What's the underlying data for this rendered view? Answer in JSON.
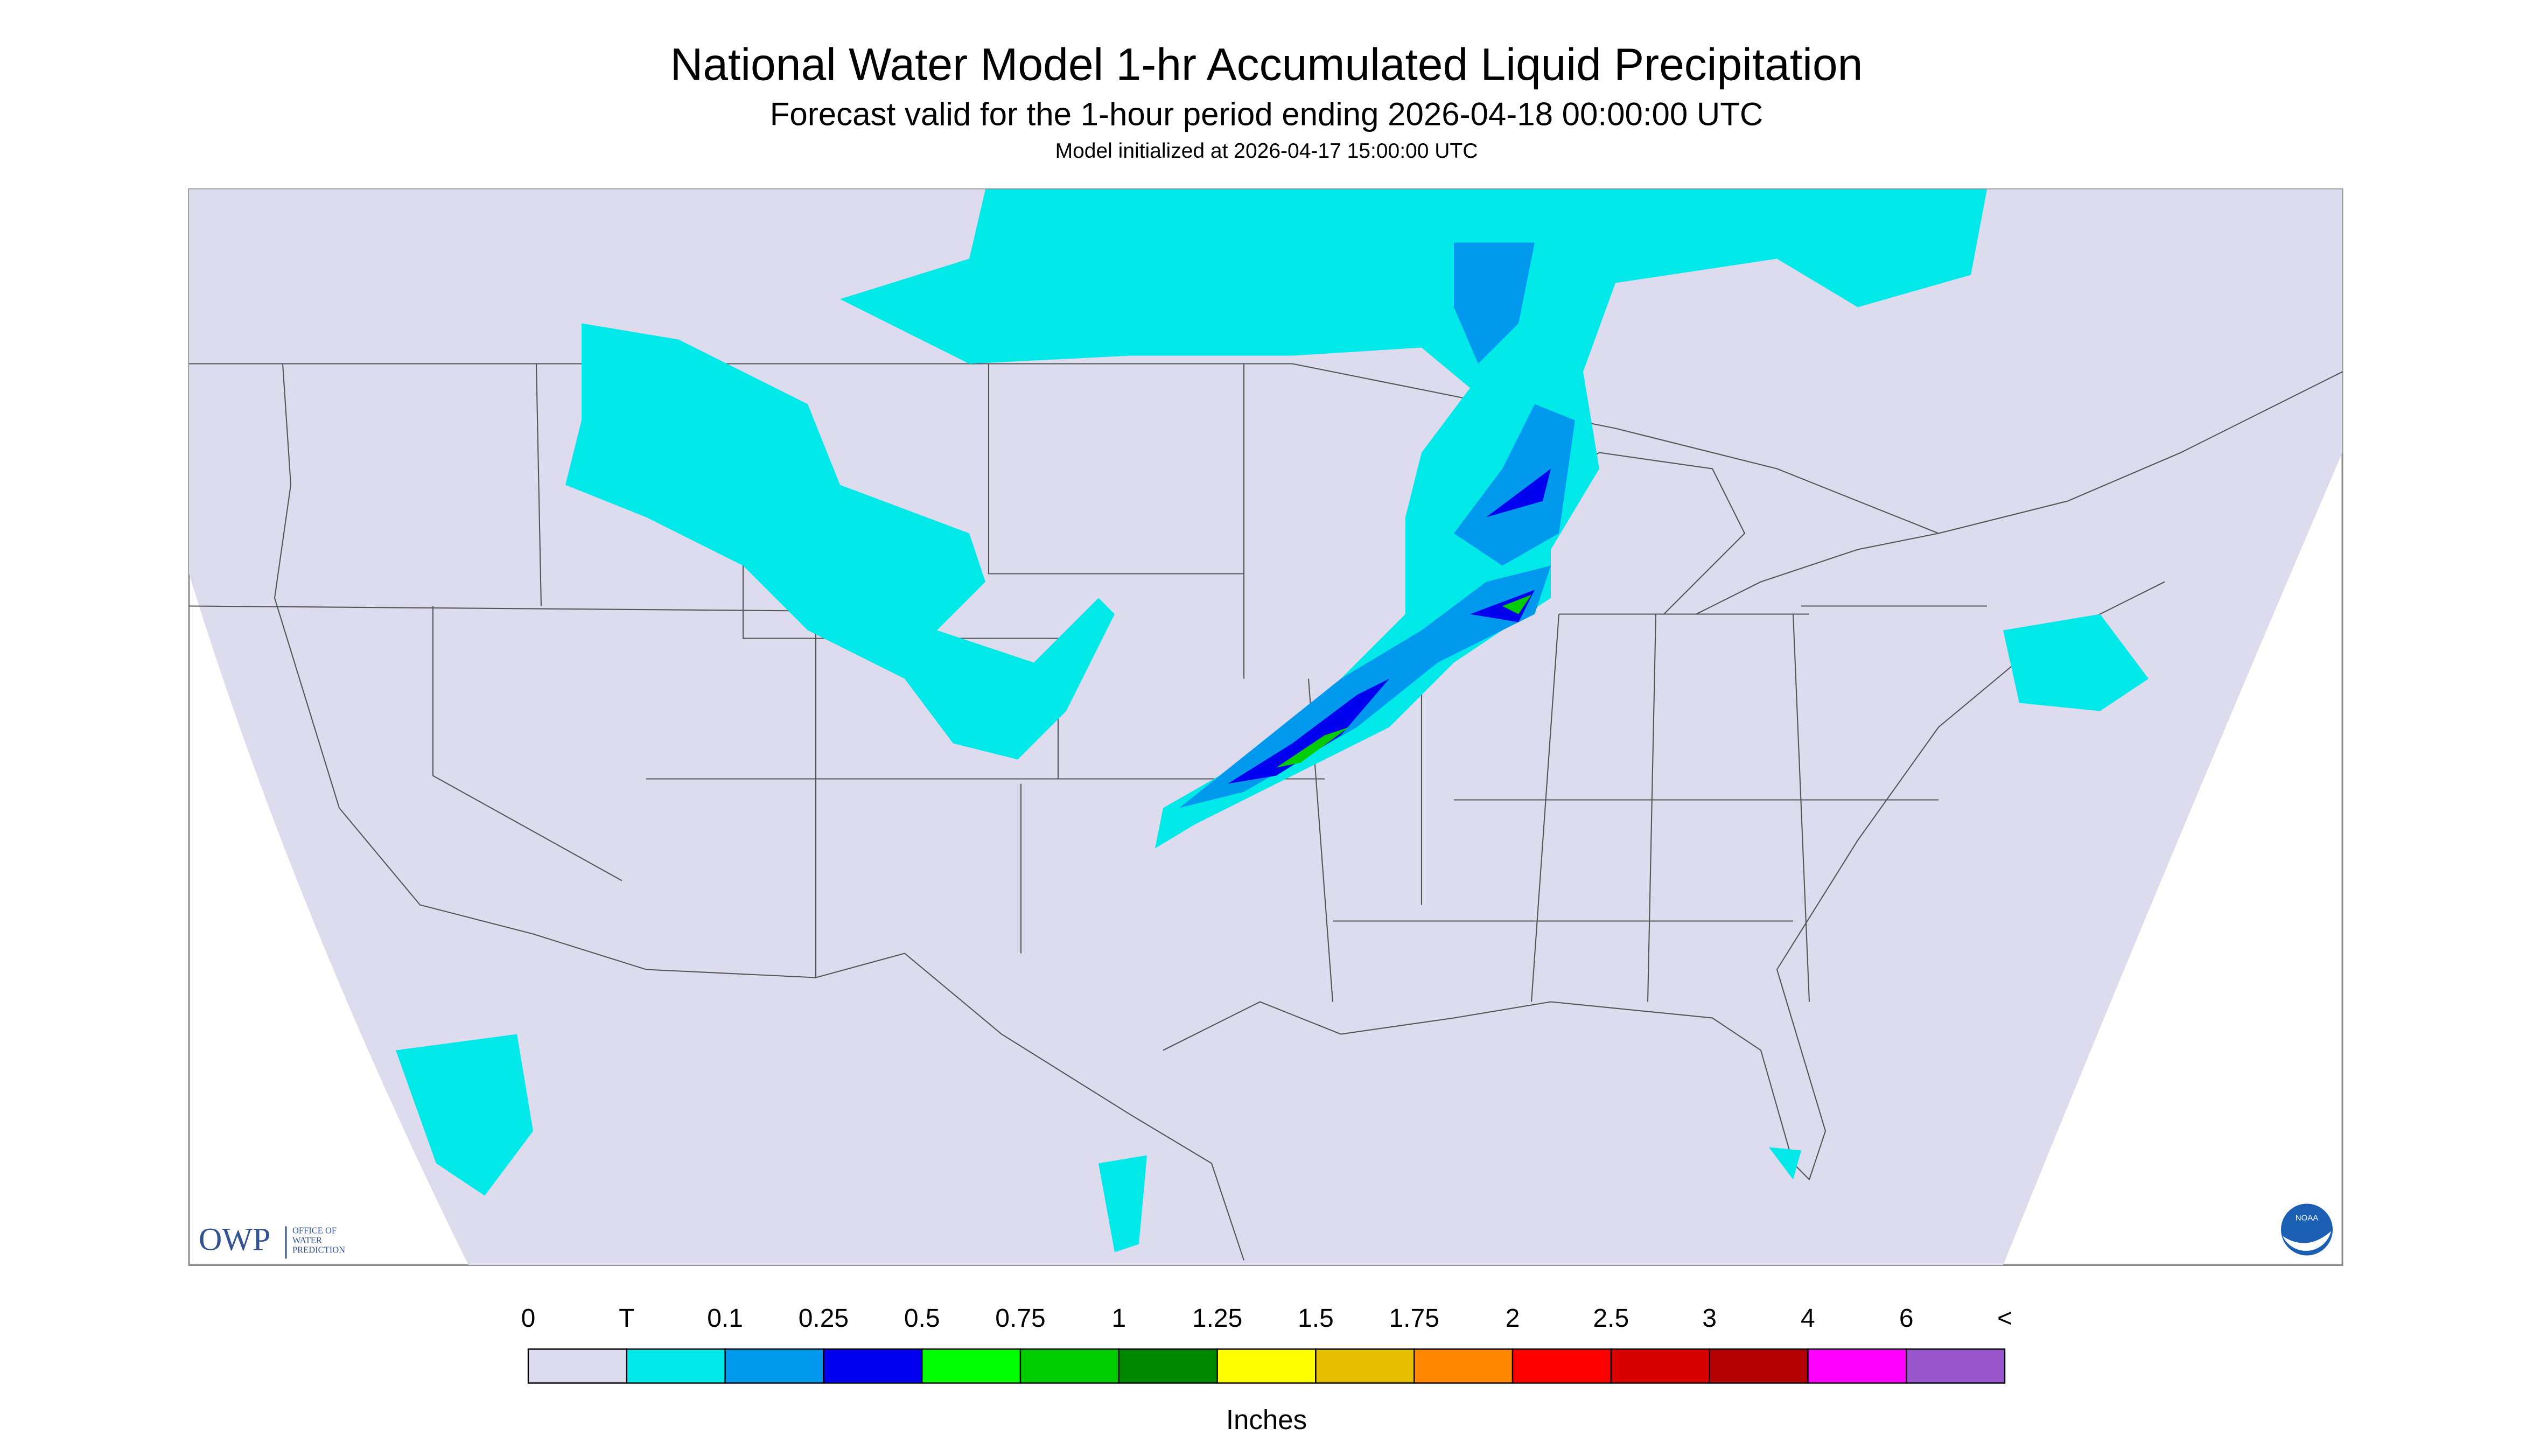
{
  "header": {
    "title": "National Water Model 1-hr Accumulated Liquid Precipitation",
    "subtitle": "Forecast valid for the 1-hour period ending 2026-04-18 00:00:00 UTC",
    "note": "Model initialized at 2026-04-17 15:00:00 UTC"
  },
  "legend": {
    "labels": [
      "0",
      "T",
      "0.1",
      "0.25",
      "0.5",
      "0.75",
      "1",
      "1.25",
      "1.5",
      "1.75",
      "2",
      "2.5",
      "3",
      "4",
      "6",
      "<"
    ],
    "colors": [
      "#dcdcee",
      "#00e8e8",
      "#0099ee",
      "#0000ee",
      "#00ff00",
      "#00cc00",
      "#008800",
      "#ffff00",
      "#e6bf00",
      "#ff8800",
      "#ff0000",
      "#d90000",
      "#b30000",
      "#ff00ff",
      "#9955cc"
    ],
    "unit": "Inches"
  },
  "logo": {
    "owp": "OWP",
    "lines": [
      "OFFICE OF",
      "WATER",
      "PREDICTION"
    ],
    "noaa": "NOAA"
  }
}
